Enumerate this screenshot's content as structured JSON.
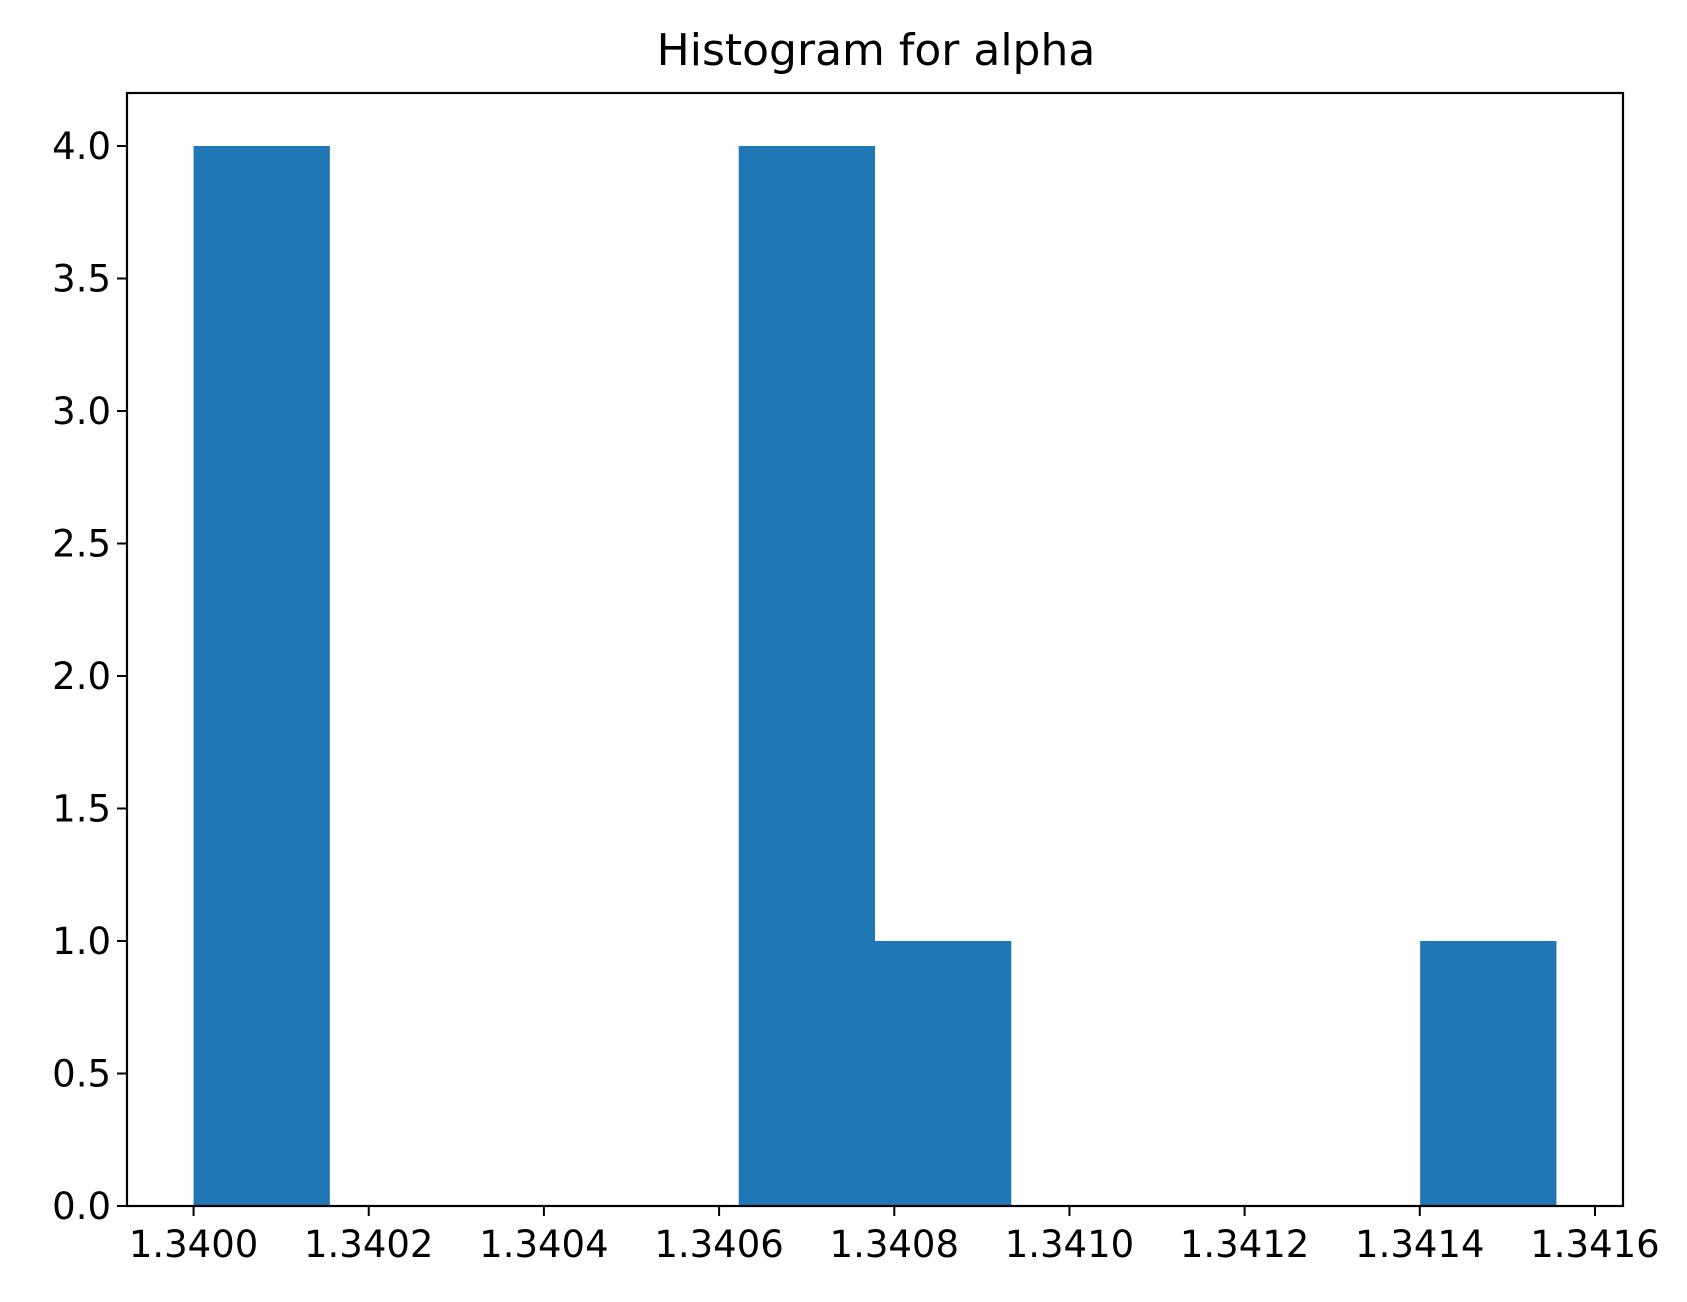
{
  "chart_data": {
    "type": "bar",
    "title": "Histogram for alpha",
    "xlabel": "",
    "ylabel": "",
    "bar_color": "#1f77b4",
    "bins": [
      {
        "x0": 1.34,
        "x1": 1.3401556,
        "count": 4
      },
      {
        "x0": 1.3401556,
        "x1": 1.3403112,
        "count": 0
      },
      {
        "x0": 1.3403112,
        "x1": 1.3404668,
        "count": 0
      },
      {
        "x0": 1.3404668,
        "x1": 1.3406224,
        "count": 0
      },
      {
        "x0": 1.3406224,
        "x1": 1.340778,
        "count": 4
      },
      {
        "x0": 1.340778,
        "x1": 1.3409336,
        "count": 1
      },
      {
        "x0": 1.3409336,
        "x1": 1.3410892,
        "count": 0
      },
      {
        "x0": 1.3410892,
        "x1": 1.3412448,
        "count": 0
      },
      {
        "x0": 1.3412448,
        "x1": 1.3414004,
        "count": 0
      },
      {
        "x0": 1.3414004,
        "x1": 1.341556,
        "count": 1
      }
    ],
    "xlim": [
      1.339924,
      1.341632
    ],
    "ylim": [
      0,
      4.2
    ],
    "x_ticks": [
      "1.3400",
      "1.3402",
      "1.3404",
      "1.3406",
      "1.3408",
      "1.3410",
      "1.3412",
      "1.3414",
      "1.3416"
    ],
    "y_ticks": [
      "0.0",
      "0.5",
      "1.0",
      "1.5",
      "2.0",
      "2.5",
      "3.0",
      "3.5",
      "4.0"
    ],
    "grid": false,
    "legend": "none"
  }
}
